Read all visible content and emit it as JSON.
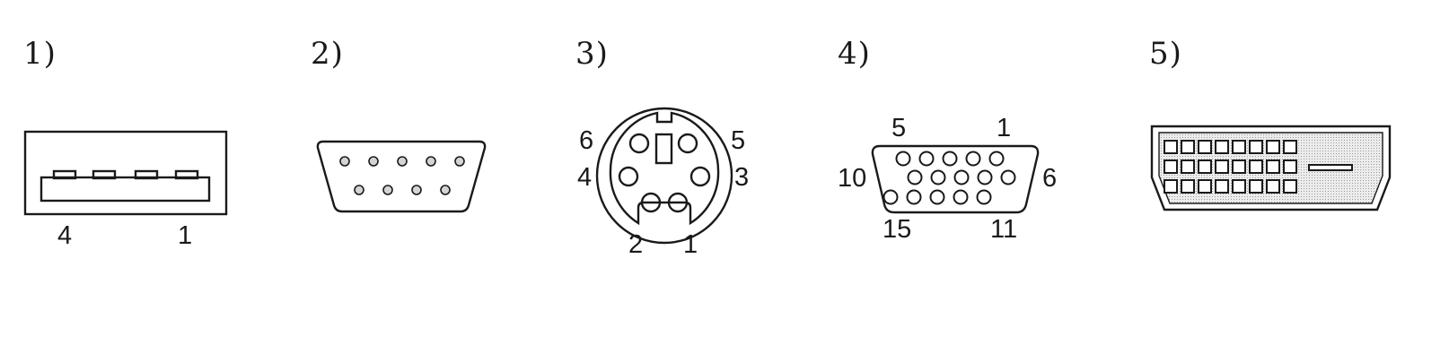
{
  "connectors": [
    {
      "id": "1",
      "number": "1)",
      "pins": {
        "left": "4",
        "right": "1"
      }
    },
    {
      "id": "2",
      "number": "2)"
    },
    {
      "id": "3",
      "number": "3)",
      "pins": {
        "top_left": "6",
        "top_right": "5",
        "mid_left": "4",
        "mid_right": "3",
        "bottom_left": "2",
        "bottom_right": "1"
      }
    },
    {
      "id": "4",
      "number": "4)",
      "pins": {
        "top_left": "5",
        "top_right": "1",
        "left": "10",
        "right": "6",
        "bottom_left": "15",
        "bottom_right": "11"
      }
    },
    {
      "id": "5",
      "number": "5)"
    }
  ]
}
